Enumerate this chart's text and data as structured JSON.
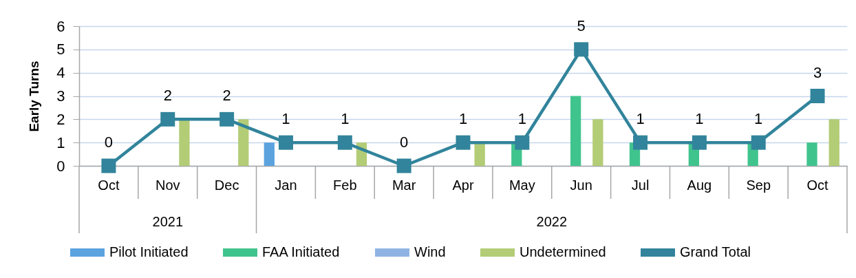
{
  "chart_data": {
    "type": "bar",
    "ylabel": "Early Turns",
    "categories": [
      "Oct",
      "Nov",
      "Dec",
      "Jan",
      "Feb",
      "Mar",
      "Apr",
      "May",
      "Jun",
      "Jul",
      "Aug",
      "Sep",
      "Oct"
    ],
    "series": [
      {
        "name": "Pilot Initiated",
        "color": "#5ba3df",
        "values": [
          null,
          null,
          null,
          1,
          null,
          null,
          null,
          null,
          null,
          null,
          null,
          null,
          null
        ]
      },
      {
        "name": "FAA Initiated",
        "color": "#40c48e",
        "values": [
          null,
          null,
          null,
          null,
          null,
          null,
          null,
          1,
          3,
          1,
          1,
          1,
          1
        ]
      },
      {
        "name": "Wind",
        "color": "#8fb4e3",
        "values": [
          null,
          null,
          null,
          null,
          null,
          null,
          null,
          null,
          null,
          null,
          null,
          null,
          null
        ]
      },
      {
        "name": "Undetermined",
        "color": "#b3cc76",
        "values": [
          null,
          2,
          2,
          null,
          1,
          null,
          1,
          null,
          2,
          null,
          null,
          null,
          2
        ]
      },
      {
        "name": "Grand Total",
        "type": "line",
        "color": "#31849b",
        "marker": "square",
        "values": [
          0,
          2,
          2,
          1,
          1,
          0,
          1,
          1,
          5,
          1,
          1,
          1,
          3
        ],
        "value_labels": [
          "0",
          "2",
          "2",
          "1",
          "1",
          "0",
          "1",
          "1",
          "5",
          "1",
          "1",
          "1",
          "3"
        ]
      }
    ],
    "ylim": [
      0,
      6
    ],
    "yticks": [
      0,
      1,
      2,
      3,
      4,
      5,
      6
    ],
    "grid": "y",
    "legend": "bottom",
    "annotations": [
      "2021",
      "2022"
    ]
  }
}
